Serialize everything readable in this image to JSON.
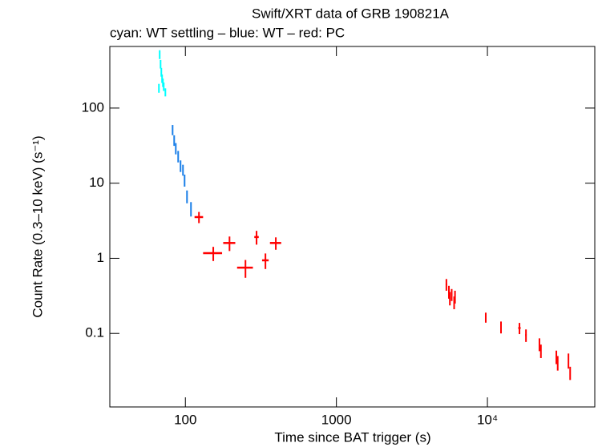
{
  "chart_data": {
    "type": "scatter",
    "title": "Swift/XRT data of GRB 190821A",
    "subtitle": "cyan: WT settling – blue: WT – red: PC",
    "x_label": "Time since BAT trigger (s)",
    "y_label": "Count Rate (0.3–10 keV) (s⁻¹)",
    "x_log": true,
    "y_log": true,
    "xlim": [
      31.6,
      51400
    ],
    "ylim": [
      0.0105,
      661
    ],
    "xticks": [
      100,
      1000,
      {
        "value": 10000,
        "label": "10⁴"
      }
    ],
    "yticks": [
      0.1,
      1,
      10,
      100
    ],
    "series": [
      {
        "color": "#00ffff",
        "x": [
          66.8,
          67.6,
          68.5,
          69.3,
          70.1,
          71,
          71.9,
          73.7
        ],
        "values": [
          185,
          519,
          386,
          302,
          248,
          219,
          194,
          163
        ],
        "yerr": [
          25,
          70,
          50,
          40,
          32,
          28,
          25,
          20
        ]
      },
      {
        "color": "#1a7fe8",
        "x": [
          82.3,
          84.3,
          86.4,
          89.6,
          92.9,
          96.4,
          98.8,
          102.5,
          108.9
        ],
        "values": [
          51.5,
          37.4,
          29.2,
          22.9,
          17.1,
          15.1,
          11,
          6.7,
          4.6
        ],
        "yerr": [
          8,
          6,
          5,
          4,
          3,
          2.5,
          2,
          1.3,
          1
        ]
      },
      {
        "color": "#ff0000",
        "x": [
          123,
          153,
          196,
          250,
          296,
          339,
          397,
          5350,
          5560,
          5640,
          5800,
          6020,
          6100,
          9750,
          12300,
          16300,
          18000,
          22100,
          22600,
          28600,
          29200,
          34400,
          35300
        ],
        "xerr": [
          8,
          22,
          18,
          30,
          10,
          17,
          34,
          60,
          60,
          60,
          60,
          60,
          60,
          60,
          80,
          300,
          200,
          150,
          150,
          200,
          200,
          200,
          200
        ],
        "values": [
          3.54,
          1.17,
          1.6,
          0.75,
          1.92,
          0.94,
          1.6,
          0.45,
          0.36,
          0.296,
          0.33,
          0.26,
          0.31,
          0.164,
          0.122,
          0.118,
          0.095,
          0.072,
          0.059,
          0.049,
          0.041,
          0.044,
          0.03
        ],
        "yerr": [
          0.6,
          0.25,
          0.35,
          0.2,
          0.4,
          0.22,
          0.3,
          0.08,
          0.07,
          0.06,
          0.06,
          0.05,
          0.06,
          0.025,
          0.022,
          0.02,
          0.018,
          0.014,
          0.012,
          0.01,
          0.009,
          0.01,
          0.006
        ]
      }
    ]
  }
}
